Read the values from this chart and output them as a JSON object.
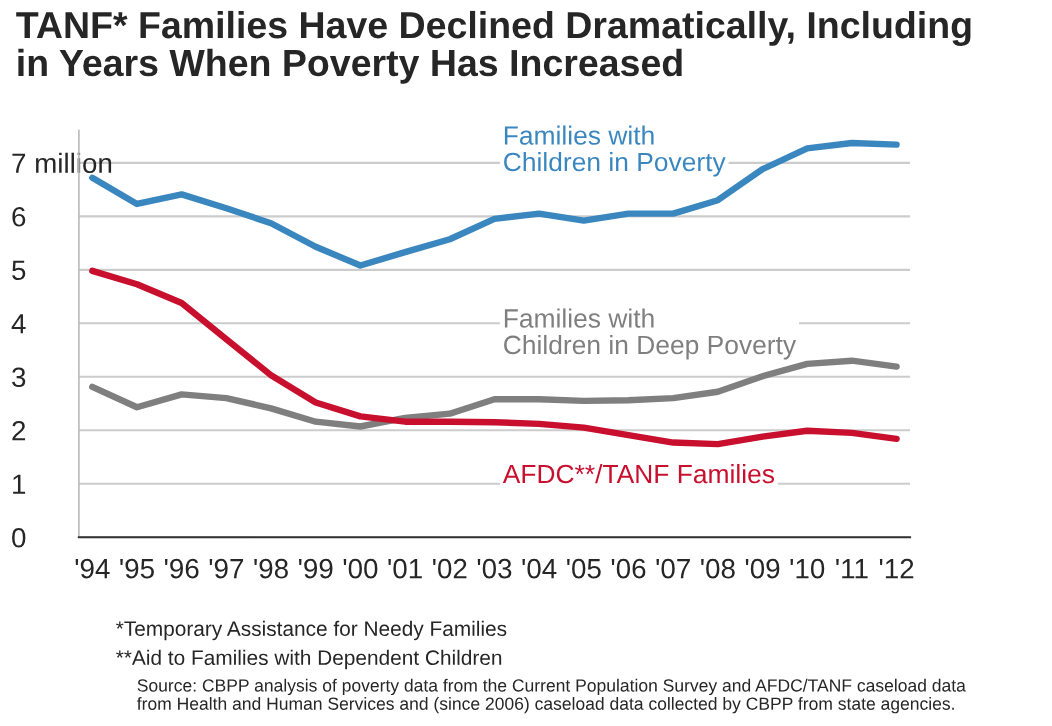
{
  "chart_data": {
    "type": "line",
    "title": "TANF* Families Have Declined Dramatically, Including\nin Years When Poverty Has Increased",
    "categories": [
      "'94",
      "'95",
      "'96",
      "'97",
      "'98",
      "'99",
      "'00",
      "'01",
      "'02",
      "'03",
      "'04",
      "'05",
      "'06",
      "'07",
      "'08",
      "'09",
      "'10",
      "'11",
      "'12"
    ],
    "series": [
      {
        "name": "Families with\nChildren in Poverty",
        "color": "#3a87c0",
        "values": [
          6.72,
          6.23,
          6.41,
          6.15,
          5.87,
          5.43,
          5.08,
          5.33,
          5.57,
          5.95,
          6.05,
          5.92,
          6.05,
          6.05,
          6.3,
          6.88,
          7.27,
          7.37,
          7.34
        ]
      },
      {
        "name": "Families with\nChildren in Deep Poverty",
        "color": "#7f7f7f",
        "values": [
          2.81,
          2.43,
          2.67,
          2.6,
          2.41,
          2.16,
          2.07,
          2.23,
          2.31,
          2.58,
          2.58,
          2.55,
          2.56,
          2.6,
          2.72,
          3.01,
          3.24,
          3.3,
          3.19
        ]
      },
      {
        "name": "AFDC**/TANF Families",
        "color": "#c8102e",
        "values": [
          4.98,
          4.73,
          4.38,
          3.7,
          3.03,
          2.52,
          2.26,
          2.16,
          2.16,
          2.15,
          2.12,
          2.05,
          1.91,
          1.77,
          1.74,
          1.88,
          1.99,
          1.95,
          1.84
        ]
      }
    ],
    "ylim": [
      0,
      7.6
    ],
    "yticks": [
      0,
      1,
      2,
      3,
      4,
      5,
      6,
      {
        "value": 7,
        "label": "7 million"
      }
    ],
    "grid": "y",
    "legend": false,
    "marker": "none",
    "line_style": "solid",
    "annotations": [
      "*Temporary Assistance for Needy Families",
      "**Aid to Families with Dependent Children",
      "Source: CBPP analysis of poverty data from the Current Population Survey and AFDC/TANF caseload data\nfrom Health and Human Services and (since 2006) caseload data collected by CBPP from state agencies."
    ]
  }
}
